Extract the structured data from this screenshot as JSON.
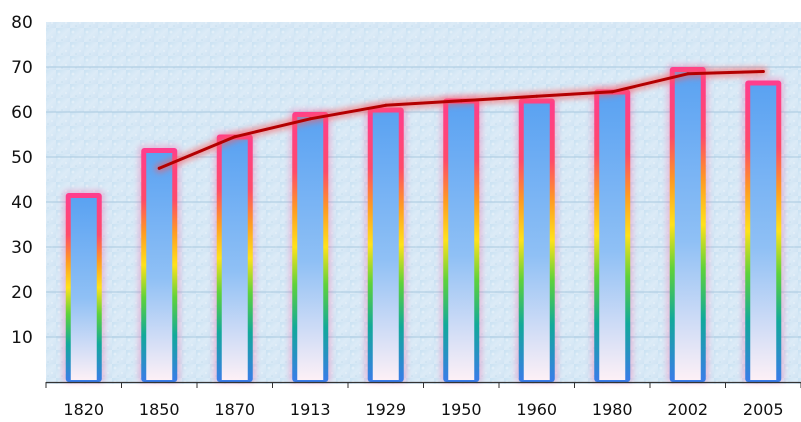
{
  "chart_data": {
    "type": "bar",
    "categories": [
      "1820",
      "1850",
      "1870",
      "1913",
      "1929",
      "1950",
      "1960",
      "1980",
      "2002",
      "2005"
    ],
    "series": [
      {
        "type": "bar",
        "values": [
          42,
          52,
          55,
          60,
          61,
          63,
          63,
          65,
          70,
          67
        ]
      },
      {
        "type": "line",
        "values": [
          null,
          47.5,
          54.5,
          58.5,
          61.5,
          62.5,
          63.5,
          64.5,
          68.5,
          69
        ]
      }
    ],
    "ylim": [
      0,
      80
    ],
    "yticks": [
      "80",
      "70",
      "60",
      "50",
      "40",
      "30",
      "20",
      "10"
    ],
    "grid": true,
    "colors": {
      "bar_border_top": "#ff3d8e",
      "bar_border_blue": "#3a7bea",
      "bar_fill_top": "#5aa2f2",
      "bar_fill_bottom": "#fdf0f6",
      "line": "#b30000",
      "line_glow": "#ff5a5a",
      "plot_background": "#d4e7f5",
      "gridline": "#a9c9df",
      "axis": "#333333"
    }
  }
}
